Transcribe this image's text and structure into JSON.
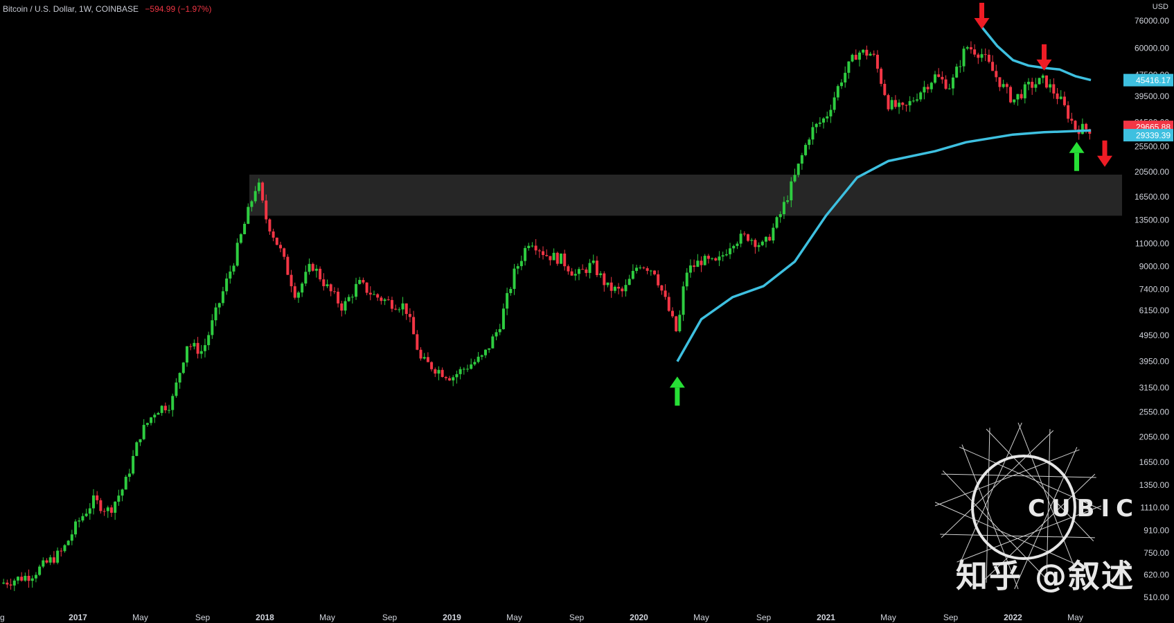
{
  "header": {
    "symbol": "Bitcoin / U.S. Dollar, 1W, COINBASE",
    "change": "−594.99 (−1.97%)"
  },
  "currency": "USD",
  "watermark": {
    "zhihu": "知乎 @叙述",
    "cubic": "CUBIC"
  },
  "colors": {
    "up": "#2ecc40",
    "down": "#f23645",
    "ma": "#3ec0e0",
    "zone": "#2a2a2a"
  },
  "chart_data": {
    "type": "candlestick",
    "scale": "log",
    "ylim": [
      510,
      76000
    ],
    "y_ticks": [
      510,
      620,
      750,
      910,
      1110,
      1350,
      1650,
      2050,
      2550,
      3150,
      3950,
      4950,
      6150,
      7400,
      9000,
      11000,
      13500,
      16500,
      20500,
      25500,
      31500,
      39500,
      47500,
      60000,
      76000
    ],
    "y_tick_labels": [
      "510.00",
      "620.00",
      "750.00",
      "910.00",
      "1110.00",
      "1350.00",
      "1650.00",
      "2050.00",
      "2550.00",
      "3150.00",
      "3950.00",
      "4950.00",
      "6150.00",
      "7400.00",
      "9000.00",
      "11000.00",
      "13500.00",
      "16500.00",
      "20500.00",
      "25500.00",
      "31500.00",
      "39500.00",
      "47500.00",
      "60000.00",
      "76000.00"
    ],
    "x_range": [
      "2016-08",
      "2022-08"
    ],
    "x_ticks": [
      {
        "label": "ug",
        "date": "2016-08"
      },
      {
        "label": "2017",
        "date": "2017-01"
      },
      {
        "label": "May",
        "date": "2017-05"
      },
      {
        "label": "Sep",
        "date": "2017-09"
      },
      {
        "label": "2018",
        "date": "2018-01"
      },
      {
        "label": "May",
        "date": "2018-05"
      },
      {
        "label": "Sep",
        "date": "2018-09"
      },
      {
        "label": "2019",
        "date": "2019-01"
      },
      {
        "label": "May",
        "date": "2019-05"
      },
      {
        "label": "Sep",
        "date": "2019-09"
      },
      {
        "label": "2020",
        "date": "2020-01"
      },
      {
        "label": "May",
        "date": "2020-05"
      },
      {
        "label": "Sep",
        "date": "2020-09"
      },
      {
        "label": "2021",
        "date": "2021-01"
      },
      {
        "label": "May",
        "date": "2021-05"
      },
      {
        "label": "Sep",
        "date": "2021-09"
      },
      {
        "label": "2022",
        "date": "2022-01"
      },
      {
        "label": "May",
        "date": "2022-05"
      }
    ],
    "price_path": [
      [
        "2016-08",
        575
      ],
      [
        "2016-10",
        620
      ],
      [
        "2016-12",
        760
      ],
      [
        "2017-01",
        980
      ],
      [
        "2017-02",
        1180
      ],
      [
        "2017-03",
        1080
      ],
      [
        "2017-04",
        1350
      ],
      [
        "2017-05",
        2100
      ],
      [
        "2017-06",
        2600
      ],
      [
        "2017-07",
        2750
      ],
      [
        "2017-08",
        4600
      ],
      [
        "2017-09",
        4300
      ],
      [
        "2017-10",
        6400
      ],
      [
        "2017-11",
        9500
      ],
      [
        "2017-12-17",
        19000
      ],
      [
        "2018-01",
        14000
      ],
      [
        "2018-02",
        10300
      ],
      [
        "2018-03",
        7000
      ],
      [
        "2018-04",
        9200
      ],
      [
        "2018-05",
        7500
      ],
      [
        "2018-06",
        6300
      ],
      [
        "2018-07",
        7800
      ],
      [
        "2018-08",
        7000
      ],
      [
        "2018-09",
        6600
      ],
      [
        "2018-10",
        6400
      ],
      [
        "2018-11",
        4000
      ],
      [
        "2018-12",
        3700
      ],
      [
        "2019-01",
        3450
      ],
      [
        "2019-02",
        3800
      ],
      [
        "2019-03",
        4100
      ],
      [
        "2019-04",
        5300
      ],
      [
        "2019-05",
        8500
      ],
      [
        "2019-06",
        11500
      ],
      [
        "2019-07",
        10000
      ],
      [
        "2019-08",
        9600
      ],
      [
        "2019-09",
        8300
      ],
      [
        "2019-10",
        9200
      ],
      [
        "2019-11",
        7500
      ],
      [
        "2019-12",
        7200
      ],
      [
        "2020-01",
        9300
      ],
      [
        "2020-02",
        8700
      ],
      [
        "2020-03-15",
        5000
      ],
      [
        "2020-04",
        8600
      ],
      [
        "2020-05",
        9500
      ],
      [
        "2020-06",
        9200
      ],
      [
        "2020-07",
        11300
      ],
      [
        "2020-08",
        11700
      ],
      [
        "2020-09",
        10700
      ],
      [
        "2020-10",
        13800
      ],
      [
        "2020-11",
        19600
      ],
      [
        "2020-12",
        29000
      ],
      [
        "2021-01",
        33000
      ],
      [
        "2021-02",
        46000
      ],
      [
        "2021-03",
        58000
      ],
      [
        "2021-04",
        57000
      ],
      [
        "2021-05",
        37000
      ],
      [
        "2021-06",
        35000
      ],
      [
        "2021-07",
        41000
      ],
      [
        "2021-08",
        47000
      ],
      [
        "2021-09",
        43000
      ],
      [
        "2021-10",
        61000
      ],
      [
        "2021-11",
        57000
      ],
      [
        "2021-12",
        46000
      ],
      [
        "2022-01",
        38000
      ],
      [
        "2022-02",
        43000
      ],
      [
        "2022-03",
        45500
      ],
      [
        "2022-04",
        38500
      ],
      [
        "2022-05",
        30000
      ],
      [
        "2022-06",
        29665.88
      ]
    ],
    "ma_path": [
      [
        "2020-03-15",
        3950
      ],
      [
        "2020-05",
        5700
      ],
      [
        "2020-07",
        6900
      ],
      [
        "2020-09",
        7600
      ],
      [
        "2020-11",
        9400
      ],
      [
        "2021-01",
        14000
      ],
      [
        "2021-03",
        19500
      ],
      [
        "2021-05",
        22500
      ],
      [
        "2021-08",
        24500
      ],
      [
        "2021-10",
        26500
      ],
      [
        "2022-01",
        28300
      ],
      [
        "2022-03",
        28900
      ],
      [
        "2022-06",
        29339.39
      ]
    ],
    "ma_upper_path": [
      [
        "2021-11",
        72000
      ],
      [
        "2021-12",
        61000
      ],
      [
        "2022-01",
        54000
      ],
      [
        "2022-02",
        51500
      ],
      [
        "2022-03",
        50500
      ],
      [
        "2022-04",
        49800
      ],
      [
        "2022-05",
        47000
      ],
      [
        "2022-06",
        45416.17
      ]
    ],
    "resistance_zone": {
      "low": 14000,
      "high": 20000,
      "from": "2017-12",
      "to": "2022-08"
    },
    "price_labels": {
      "ma_upper": "45416.17",
      "last": "29665.88",
      "ma": "29339.39"
    },
    "arrows": [
      {
        "dir": "up",
        "date": "2020-03-15",
        "price": 3000,
        "color": "green"
      },
      {
        "dir": "down",
        "date": "2021-11",
        "price": 76000,
        "color": "red"
      },
      {
        "dir": "down",
        "date": "2022-03",
        "price": 53000,
        "color": "red"
      },
      {
        "dir": "up",
        "date": "2022-05",
        "price": 23000,
        "color": "green"
      },
      {
        "dir": "down",
        "date": "2022-06",
        "price": 23000,
        "color": "red"
      }
    ]
  }
}
